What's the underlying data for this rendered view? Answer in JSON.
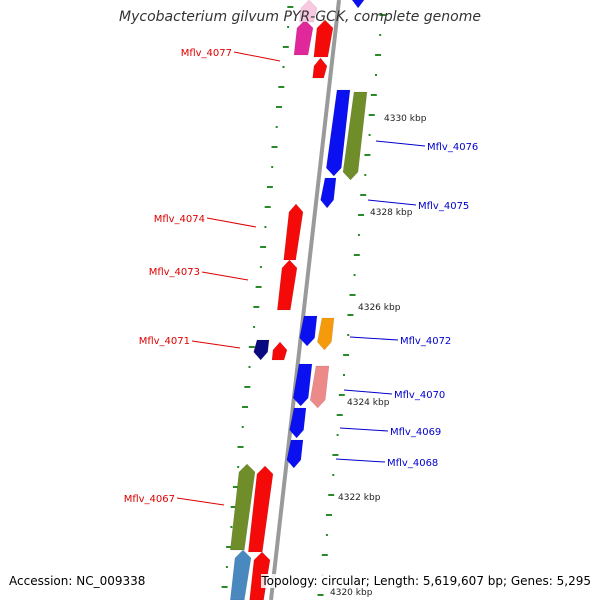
{
  "title": "Mycobacterium gilvum PYR-GCK, complete genome",
  "accession": "Accession: NC_009338",
  "summary": "Topology: circular; Length: 5,619,607 bp; Genes: 5,295",
  "colors": {
    "backbone": "#9a9a9a",
    "dots": "#2a8a2a",
    "forward_label": "#0000cc",
    "reverse_label": "#dd0000",
    "blue": "#0a10f0",
    "red": "#f50a0a",
    "navy": "#0a0a80",
    "olive": "#6f8e2a",
    "orange": "#f59a0a",
    "pink": "#ec8a8a",
    "magenta": "#e0289a",
    "light_pink": "#f8c8e0",
    "steel_blue": "#4a88c0"
  },
  "tick_labels": [
    "4330 kbp",
    "4328 kbp",
    "4326 kbp",
    "4324 kbp",
    "4322 kbp",
    "4320 kbp"
  ],
  "gene_labels": {
    "forward": [
      "Mflv_4076",
      "Mflv_4075",
      "Mflv_4072",
      "Mflv_4070",
      "Mflv_4069",
      "Mflv_4068"
    ],
    "reverse": [
      "Mflv_4077",
      "Mflv_4074",
      "Mflv_4073",
      "Mflv_4071",
      "Mflv_4067"
    ]
  }
}
